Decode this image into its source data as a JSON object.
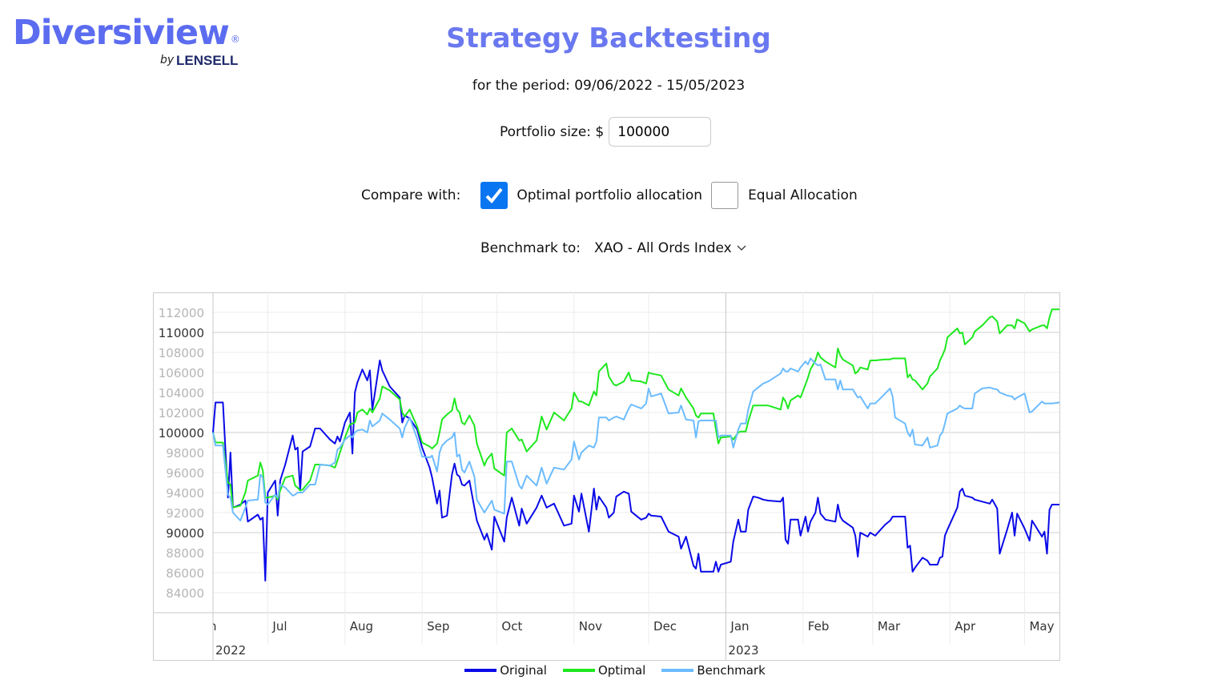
{
  "logo": {
    "name": "Diversiview",
    "registered": "®",
    "by": "by",
    "company": "LENSELL"
  },
  "header": {
    "title": "Strategy Backtesting",
    "period": "for the period: 09/06/2022 - 15/05/2023"
  },
  "portfolio": {
    "label": "Portfolio size: $",
    "value": "100000"
  },
  "compare": {
    "label": "Compare with:",
    "options": [
      {
        "label": "Optimal portfolio allocation",
        "checked": true
      },
      {
        "label": "Equal Allocation",
        "checked": false
      }
    ]
  },
  "benchmark": {
    "label": "Benchmark to:",
    "selected": "XAO - All Ords Index"
  },
  "colors": {
    "accent": "#5b6cf0",
    "checkbox": "#0a75f0",
    "original": "#0a0ae8",
    "optimal": "#1ee81e",
    "benchmark": "#6cbcff"
  },
  "chart_data": {
    "type": "line",
    "ylim": [
      82000,
      114000
    ],
    "yticks": [
      "84000",
      "86000",
      "88000",
      "90000",
      "92000",
      "94000",
      "96000",
      "98000",
      "100000",
      "102000",
      "104000",
      "106000",
      "108000",
      "110000",
      "112000"
    ],
    "xlim": [
      "2022-06-09",
      "2023-05-15"
    ],
    "xticks": [
      {
        "label": "Jun",
        "date": "2022-06-01"
      },
      {
        "label": "Jul",
        "date": "2022-07-01"
      },
      {
        "label": "Aug",
        "date": "2022-08-01"
      },
      {
        "label": "Sep",
        "date": "2022-09-01"
      },
      {
        "label": "Oct",
        "date": "2022-10-01"
      },
      {
        "label": "Nov",
        "date": "2022-11-01"
      },
      {
        "label": "Dec",
        "date": "2022-12-01"
      },
      {
        "label": "Jan",
        "date": "2023-01-01"
      },
      {
        "label": "Feb",
        "date": "2023-02-01"
      },
      {
        "label": "Mar",
        "date": "2023-03-01"
      },
      {
        "label": "Apr",
        "date": "2023-04-01"
      },
      {
        "label": "May",
        "date": "2023-05-01"
      }
    ],
    "years": [
      {
        "label": "2022",
        "date": "2022-06-09"
      },
      {
        "label": "2023",
        "date": "2023-01-01"
      }
    ],
    "grid": true,
    "legend_position": "bottom",
    "dates": [
      "2022-06-09",
      "2022-06-10",
      "2022-06-13",
      "2022-06-15",
      "2022-06-16",
      "2022-06-17",
      "2022-06-20",
      "2022-06-22",
      "2022-06-23",
      "2022-06-27",
      "2022-06-28",
      "2022-06-29",
      "2022-06-30",
      "2022-07-01",
      "2022-07-04",
      "2022-07-05",
      "2022-07-06",
      "2022-07-08",
      "2022-07-11",
      "2022-07-12",
      "2022-07-13",
      "2022-07-14",
      "2022-07-15",
      "2022-07-18",
      "2022-07-20",
      "2022-07-22",
      "2022-07-26",
      "2022-07-28",
      "2022-07-29",
      "2022-07-30",
      "2022-08-01",
      "2022-08-03",
      "2022-08-04",
      "2022-08-05",
      "2022-08-06",
      "2022-08-08",
      "2022-08-10",
      "2022-08-11",
      "2022-08-12",
      "2022-08-15",
      "2022-08-16",
      "2022-08-19",
      "2022-08-23",
      "2022-08-24",
      "2022-08-25",
      "2022-08-27",
      "2022-08-30",
      "2022-09-01",
      "2022-09-04",
      "2022-09-05",
      "2022-09-07",
      "2022-09-08",
      "2022-09-09",
      "2022-09-11",
      "2022-09-13",
      "2022-09-14",
      "2022-09-15",
      "2022-09-16",
      "2022-09-17",
      "2022-09-18",
      "2022-09-20",
      "2022-09-22",
      "2022-09-23",
      "2022-09-26",
      "2022-09-27",
      "2022-09-29",
      "2022-09-30",
      "2022-10-04",
      "2022-10-05",
      "2022-10-07",
      "2022-10-10",
      "2022-10-11",
      "2022-10-13",
      "2022-10-17",
      "2022-10-19",
      "2022-10-21",
      "2022-10-24",
      "2022-10-28",
      "2022-10-31",
      "2022-11-01",
      "2022-11-03",
      "2022-11-04",
      "2022-11-07",
      "2022-11-09",
      "2022-11-10",
      "2022-11-11",
      "2022-11-14",
      "2022-11-15",
      "2022-11-17",
      "2022-11-18",
      "2022-11-21",
      "2022-11-23",
      "2022-11-24",
      "2022-11-28",
      "2022-11-30",
      "2022-12-01",
      "2022-12-02",
      "2022-12-06",
      "2022-12-09",
      "2022-12-13",
      "2022-12-14",
      "2022-12-16",
      "2022-12-19",
      "2022-12-20",
      "2022-12-21",
      "2022-12-22",
      "2022-12-27",
      "2022-12-28",
      "2022-12-29",
      "2022-12-30",
      "2023-01-03",
      "2023-01-04",
      "2023-01-06",
      "2023-01-07",
      "2023-01-09",
      "2023-01-10",
      "2023-01-12",
      "2023-01-14",
      "2023-01-16",
      "2023-01-18",
      "2023-01-23",
      "2023-01-24",
      "2023-01-25",
      "2023-01-26",
      "2023-01-27",
      "2023-01-30",
      "2023-01-31",
      "2023-02-02",
      "2023-02-03",
      "2023-02-04",
      "2023-02-06",
      "2023-02-07",
      "2023-02-08",
      "2023-02-10",
      "2023-02-14",
      "2023-02-15",
      "2023-02-16",
      "2023-02-17",
      "2023-02-21",
      "2023-02-22",
      "2023-02-23",
      "2023-02-24",
      "2023-02-27",
      "2023-02-28",
      "2023-03-02",
      "2023-03-06",
      "2023-03-08",
      "2023-03-09",
      "2023-03-10",
      "2023-03-14",
      "2023-03-15",
      "2023-03-16",
      "2023-03-17",
      "2023-03-18",
      "2023-03-21",
      "2023-03-23",
      "2023-03-24",
      "2023-03-27",
      "2023-03-28",
      "2023-03-29",
      "2023-03-30",
      "2023-03-31",
      "2023-04-04",
      "2023-04-05",
      "2023-04-06",
      "2023-04-07",
      "2023-04-10",
      "2023-04-11",
      "2023-04-14",
      "2023-04-17",
      "2023-04-18",
      "2023-04-20",
      "2023-04-21",
      "2023-04-24",
      "2023-04-26",
      "2023-04-27",
      "2023-04-28",
      "2023-05-01",
      "2023-05-03",
      "2023-05-04",
      "2023-05-08",
      "2023-05-09",
      "2023-05-10",
      "2023-05-11",
      "2023-05-12",
      "2023-05-15"
    ],
    "series": [
      {
        "name": "Original",
        "color": "#0a0ae8",
        "values": [
          100000,
          103000,
          103000,
          93500,
          98000,
          92500,
          92800,
          93200,
          91100,
          91800,
          91300,
          91500,
          85200,
          94000,
          95200,
          91700,
          95200,
          96800,
          99700,
          98300,
          98500,
          94200,
          98100,
          98600,
          100400,
          100400,
          99300,
          98900,
          99600,
          99100,
          101000,
          102000,
          97900,
          104000,
          105000,
          106300,
          105200,
          106200,
          102300,
          107200,
          106200,
          104600,
          103500,
          101000,
          101700,
          101400,
          100300,
          98500,
          96500,
          95500,
          92900,
          94200,
          91500,
          91700,
          95800,
          96900,
          95800,
          95600,
          94800,
          94700,
          95200,
          92500,
          91200,
          89300,
          89900,
          88300,
          91600,
          89100,
          91500,
          93500,
          90700,
          92400,
          90900,
          92500,
          93700,
          92500,
          92900,
          90700,
          90900,
          93700,
          92100,
          93900,
          90100,
          94400,
          92300,
          93600,
          92500,
          91500,
          92000,
          93600,
          94100,
          93900,
          92100,
          91300,
          91500,
          91900,
          91700,
          91600,
          90100,
          89600,
          88400,
          89600,
          86700,
          86400,
          87900,
          86100,
          86100,
          87100,
          86100,
          86800,
          87100,
          89100,
          91300,
          90100,
          90100,
          92300,
          93600,
          93500,
          93300,
          93200,
          93100,
          93500,
          89300,
          88900,
          91300,
          91300,
          89700,
          91600,
          90100,
          91100,
          92000,
          93500,
          91900,
          91300,
          91100,
          92800,
          91600,
          91200,
          90500,
          89700,
          87600,
          90000,
          89600,
          90000,
          89700,
          90800,
          91200,
          91600,
          91600,
          91600,
          88500,
          88700,
          86100,
          86500,
          87500,
          87200,
          86800,
          86800,
          87500,
          87600,
          89700,
          90300,
          92500,
          94100,
          94400,
          93700,
          93500,
          93300,
          93100,
          92900,
          93300,
          92400,
          87900,
          90300,
          92000,
          89700,
          91900,
          90400,
          89200,
          91200,
          89600,
          90100,
          87900,
          92300,
          92800,
          92800
        ]
      },
      {
        "name": "Optimal",
        "color": "#1ee81e",
        "values": [
          100000,
          99000,
          99000,
          95000,
          94800,
          92500,
          92700,
          94000,
          95200,
          95700,
          97000,
          96200,
          93500,
          93500,
          93700,
          93300,
          94200,
          95500,
          95700,
          94700,
          94500,
          94200,
          94300,
          95200,
          96800,
          96800,
          96700,
          96500,
          97200,
          98000,
          99500,
          100800,
          100900,
          101000,
          102000,
          102300,
          101800,
          102400,
          102000,
          103400,
          104600,
          104200,
          103300,
          102000,
          101600,
          102300,
          100600,
          99000,
          98600,
          98400,
          98900,
          100000,
          101300,
          101800,
          102200,
          103400,
          102300,
          102000,
          101000,
          100800,
          101700,
          100700,
          98900,
          96700,
          97300,
          97900,
          96400,
          95700,
          100000,
          100400,
          99200,
          99300,
          98100,
          99200,
          101600,
          100300,
          102000,
          101200,
          102400,
          104000,
          103100,
          103100,
          102700,
          104100,
          103700,
          106100,
          106900,
          105600,
          104800,
          104700,
          105100,
          106000,
          105200,
          105100,
          104900,
          106000,
          105900,
          105700,
          104300,
          103700,
          104400,
          103500,
          102400,
          101700,
          101500,
          101900,
          101900,
          100300,
          98900,
          99500,
          99600,
          99300,
          100000,
          100100,
          100100,
          101100,
          102700,
          102700,
          102700,
          102700,
          102300,
          103500,
          103100,
          102400,
          103200,
          103700,
          103500,
          104800,
          105500,
          106300,
          107200,
          108000,
          107500,
          107100,
          106500,
          108400,
          107700,
          107300,
          106700,
          105900,
          106100,
          106500,
          106300,
          107200,
          107200,
          107300,
          107300,
          107400,
          107400,
          107400,
          105500,
          105800,
          105300,
          105200,
          104300,
          104900,
          105600,
          106400,
          107200,
          107700,
          108300,
          109500,
          110400,
          109900,
          110000,
          108800,
          109500,
          110100,
          110700,
          111500,
          111600,
          111100,
          109900,
          110700,
          110700,
          110400,
          111300,
          110900,
          110100,
          110300,
          110700,
          110700,
          110400,
          111500,
          112300,
          112300
        ]
      },
      {
        "name": "Benchmark",
        "color": "#6cbcff",
        "values": [
          100000,
          98700,
          98700,
          93800,
          93500,
          92000,
          91200,
          92500,
          93200,
          93300,
          95800,
          95500,
          93000,
          92800,
          93800,
          93500,
          94800,
          94500,
          93700,
          93800,
          94000,
          94000,
          94000,
          94800,
          94800,
          96800,
          96700,
          97000,
          98300,
          98500,
          99300,
          99700,
          99500,
          100000,
          100200,
          100300,
          100000,
          101200,
          100600,
          101200,
          101900,
          101300,
          100400,
          99500,
          100500,
          101500,
          99400,
          97600,
          97500,
          97700,
          96100,
          98000,
          98700,
          99200,
          99500,
          100000,
          97600,
          97800,
          96300,
          96000,
          97100,
          95600,
          93300,
          92000,
          92400,
          93200,
          92300,
          91900,
          97100,
          97100,
          94700,
          94400,
          95700,
          94700,
          96500,
          94900,
          96500,
          96300,
          97300,
          99100,
          97300,
          98000,
          98700,
          98500,
          99100,
          101500,
          101500,
          101200,
          101500,
          101600,
          101300,
          102400,
          102800,
          102400,
          102900,
          104400,
          103600,
          103900,
          101900,
          102000,
          102700,
          101300,
          101200,
          99500,
          101100,
          101200,
          101200,
          101200,
          99500,
          99700,
          99700,
          98500,
          100300,
          100900,
          100900,
          102300,
          104100,
          104500,
          104900,
          105100,
          105900,
          106400,
          106100,
          106100,
          106400,
          106100,
          106500,
          107100,
          106800,
          107400,
          106900,
          106700,
          106800,
          105300,
          105300,
          104300,
          105200,
          104300,
          104300,
          103900,
          103500,
          103600,
          102400,
          102900,
          102900,
          103900,
          104400,
          103600,
          101500,
          100900,
          100000,
          99600,
          100300,
          98800,
          98700,
          99500,
          98500,
          98700,
          99700,
          100000,
          100900,
          101900,
          102400,
          102700,
          102500,
          102400,
          102400,
          103900,
          104400,
          104500,
          104400,
          104300,
          104000,
          103700,
          103600,
          103300,
          103500,
          103900,
          102000,
          102100,
          103100,
          102900,
          102900,
          102900,
          102900,
          103000
        ]
      }
    ]
  }
}
